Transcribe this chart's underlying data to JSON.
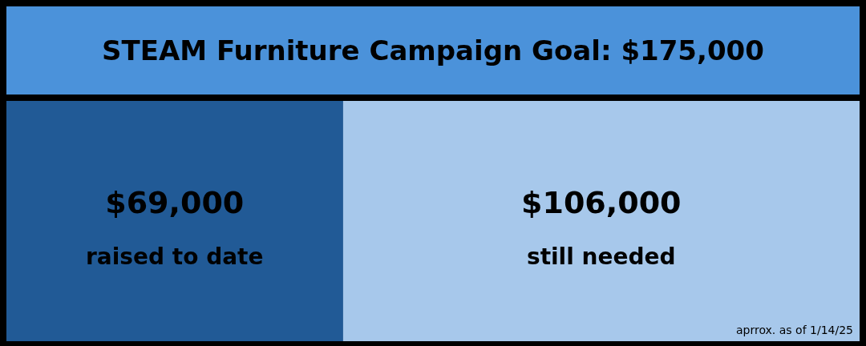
{
  "chart_data": {
    "type": "bar",
    "orientation": "horizontal",
    "stacked": true,
    "title": "STEAM Furniture Campaign Goal: $175,000",
    "categories": [
      null
    ],
    "series": [
      {
        "name": "raised to date",
        "color": "#215a96",
        "values": [
          69000
        ],
        "value_labels": [
          "$69,000"
        ]
      },
      {
        "name": "still needed",
        "color": "#a7c8eb",
        "values": [
          106000
        ],
        "value_labels": [
          "$106,000"
        ]
      }
    ],
    "xlim": [
      0,
      175000
    ],
    "tick_labels": false,
    "legend": false,
    "annotations": [
      "aprrox. as of 1/14/25"
    ]
  }
}
